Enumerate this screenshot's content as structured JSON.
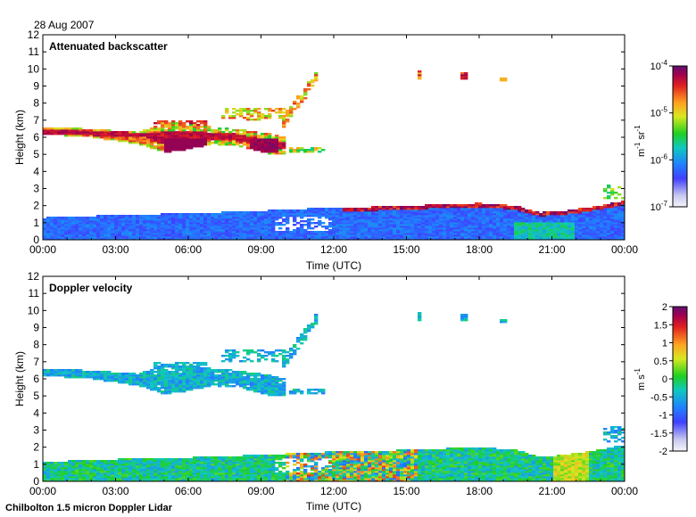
{
  "header": {
    "date": "28 Aug 2007"
  },
  "footer": {
    "instrument": "Chilbolton 1.5 micron Doppler Lidar"
  },
  "chart_data": [
    {
      "type": "heatmap",
      "title": "Attenuated backscatter",
      "xlabel": "Time (UTC)",
      "ylabel": "Height (km)",
      "xlim": [
        0,
        24
      ],
      "ylim": [
        0,
        12
      ],
      "x_ticks": [
        "00:00",
        "03:00",
        "06:00",
        "09:00",
        "12:00",
        "15:00",
        "18:00",
        "21:00",
        "00:00"
      ],
      "y_ticks": [
        "0",
        "1",
        "2",
        "3",
        "4",
        "5",
        "6",
        "7",
        "8",
        "9",
        "10",
        "11",
        "12"
      ],
      "colorbar": {
        "scale": "log",
        "range": [
          1e-07,
          0.0001
        ],
        "ticks": [
          {
            "mant": "10",
            "exp": "-4"
          },
          {
            "mant": "10",
            "exp": "-5"
          },
          {
            "mant": "10",
            "exp": "-6"
          },
          {
            "mant": "10",
            "exp": "-7"
          }
        ],
        "unit": {
          "a": "m",
          "a_exp": "-1",
          "b": "sr",
          "b_exp": "-1"
        }
      },
      "features": [
        {
          "name": "boundary layer aerosol",
          "t": [
            0,
            24
          ],
          "z": [
            0,
            2.2
          ],
          "level": "low (blue)"
        },
        {
          "name": "mid-level cloud layer",
          "t": [
            0,
            9.8
          ],
          "z": [
            4.8,
            6.8
          ],
          "level": "high (red)"
        },
        {
          "name": "ascending cloud",
          "t": [
            9.8,
            11.5
          ],
          "z": [
            6.5,
            9.9
          ],
          "level": "medium"
        },
        {
          "name": "upper cloud fragments",
          "t": [
            15.2,
            19.1
          ],
          "z": [
            9.2,
            9.9
          ],
          "level": "medium"
        },
        {
          "name": "boundary layer top",
          "t": [
            12,
            24
          ],
          "z": [
            1.5,
            2.5
          ],
          "level": "high (red)"
        }
      ]
    },
    {
      "type": "heatmap",
      "title": "Doppler velocity",
      "xlabel": "Time (UTC)",
      "ylabel": "Height (km)",
      "xlim": [
        0,
        24
      ],
      "ylim": [
        0,
        12
      ],
      "x_ticks": [
        "00:00",
        "03:00",
        "06:00",
        "09:00",
        "12:00",
        "15:00",
        "18:00",
        "21:00",
        "00:00"
      ],
      "y_ticks": [
        "0",
        "1",
        "2",
        "3",
        "4",
        "5",
        "6",
        "7",
        "8",
        "9",
        "10",
        "11",
        "12"
      ],
      "colorbar": {
        "scale": "linear",
        "range": [
          -2,
          2
        ],
        "ticks": [
          "2",
          "1.5",
          "1",
          "0.5",
          "0",
          "-0.5",
          "-1",
          "-1.5",
          "-2"
        ],
        "unit": {
          "a": "m",
          "b": "s",
          "b_exp": "-1"
        }
      },
      "features": [
        {
          "name": "cloud layer velocity",
          "t": [
            0,
            11.5
          ],
          "z": [
            4.8,
            9.9
          ],
          "value": "about -0.5"
        },
        {
          "name": "boundary layer velocity",
          "t": [
            0,
            24
          ],
          "z": [
            0,
            2.0
          ],
          "value": "-0.5 to 0.5, strong mixing 10-15 UTC"
        }
      ]
    }
  ]
}
